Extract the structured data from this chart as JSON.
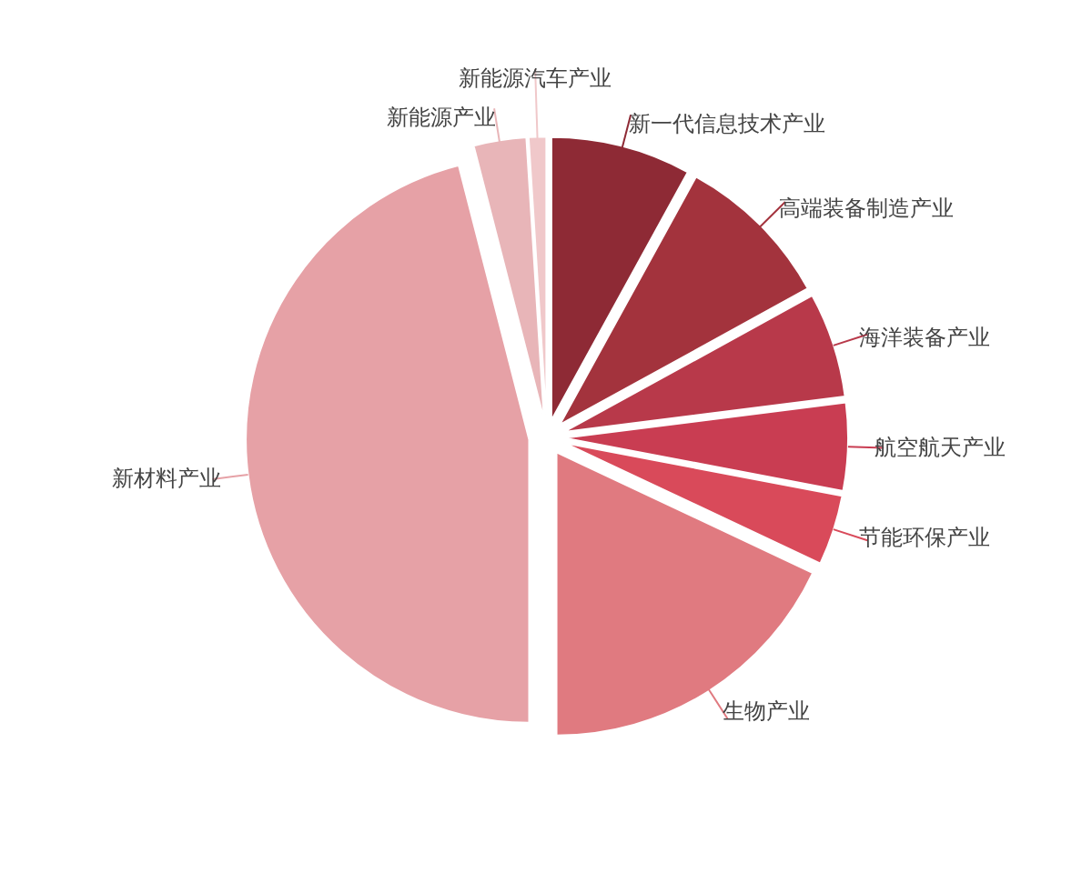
{
  "chart_data": {
    "type": "pie",
    "categories": [
      "新一代信息技术产业",
      "高端装备制造产业",
      "海洋装备产业",
      "航空航天产业",
      "节能环保产业",
      "生物产业",
      "新材料产业",
      "新能源产业",
      "新能源汽车产业"
    ],
    "values": [
      8,
      9,
      6,
      5,
      4,
      18,
      46,
      3,
      1
    ],
    "colors": [
      "#8e2a35",
      "#a3333d",
      "#b8394a",
      "#c93d52",
      "#d94a5a",
      "#e07a80",
      "#e6a1a6",
      "#e8b5b8",
      "#f0c8ca"
    ]
  }
}
